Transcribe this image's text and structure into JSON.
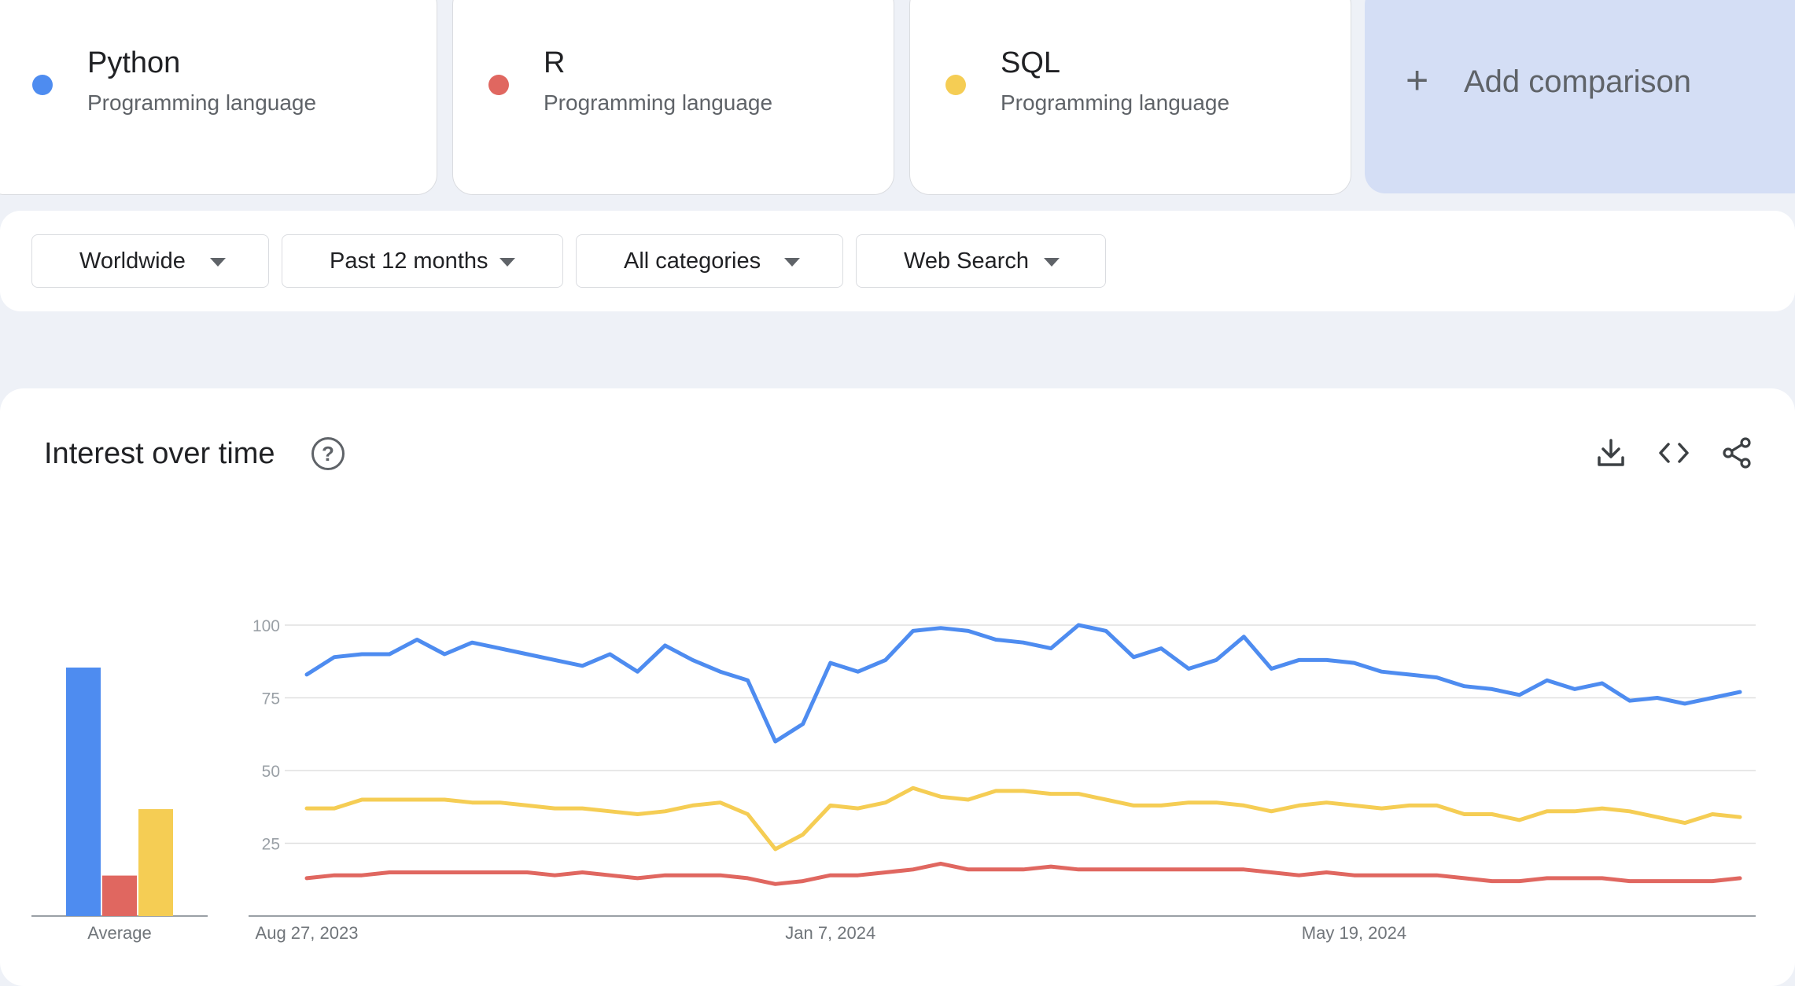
{
  "terms": [
    {
      "name": "Python",
      "type": "Programming language",
      "color": "#4e8cf0"
    },
    {
      "name": "R",
      "type": "Programming language",
      "color": "#e06760"
    },
    {
      "name": "SQL",
      "type": "Programming language",
      "color": "#f5cd54"
    }
  ],
  "add_comparison": {
    "icon": "plus-icon",
    "label": "Add comparison"
  },
  "filters": {
    "region": "Worldwide",
    "time": "Past 12 months",
    "category": "All categories",
    "search_type": "Web Search"
  },
  "panel": {
    "title": "Interest over time",
    "help_icon": "help-circle-icon",
    "actions": [
      "download-icon",
      "embed-code-icon",
      "share-icon"
    ]
  },
  "chart_data": [
    {
      "type": "bar",
      "categories": [
        "Python",
        "R",
        "SQL"
      ],
      "values": [
        86,
        14,
        37
      ],
      "xlabel": "Average",
      "colors": [
        "#4e8cf0",
        "#e06760",
        "#f5cd54"
      ]
    },
    {
      "type": "line",
      "ylim": [
        0,
        100
      ],
      "yticks": [
        25,
        50,
        75,
        100
      ],
      "grid": true,
      "x_labels": [
        {
          "index": 0,
          "label": "Aug 27, 2023"
        },
        {
          "index": 19,
          "label": "Jan 7, 2024"
        },
        {
          "index": 38,
          "label": "May 19, 2024"
        }
      ],
      "series": [
        {
          "name": "Python",
          "color": "#4e8cf0",
          "values": [
            83,
            89,
            90,
            90,
            95,
            90,
            94,
            92,
            90,
            88,
            86,
            90,
            84,
            93,
            88,
            84,
            81,
            60,
            66,
            87,
            84,
            88,
            98,
            99,
            98,
            95,
            94,
            92,
            100,
            98,
            89,
            92,
            85,
            88,
            96,
            85,
            88,
            88,
            87,
            84,
            83,
            82,
            79,
            78,
            76,
            81,
            78,
            80,
            74,
            75,
            73,
            75,
            77
          ]
        },
        {
          "name": "R",
          "color": "#e06760",
          "values": [
            13,
            14,
            14,
            15,
            15,
            15,
            15,
            15,
            15,
            14,
            15,
            14,
            13,
            14,
            14,
            14,
            13,
            11,
            12,
            14,
            14,
            15,
            16,
            18,
            16,
            16,
            16,
            17,
            16,
            16,
            16,
            16,
            16,
            16,
            16,
            15,
            14,
            15,
            14,
            14,
            14,
            14,
            13,
            12,
            12,
            13,
            13,
            13,
            12,
            12,
            12,
            12,
            13
          ]
        },
        {
          "name": "SQL",
          "color": "#f5cd54",
          "values": [
            37,
            37,
            40,
            40,
            40,
            40,
            39,
            39,
            38,
            37,
            37,
            36,
            35,
            36,
            38,
            39,
            35,
            23,
            28,
            38,
            37,
            39,
            44,
            41,
            40,
            43,
            43,
            42,
            42,
            40,
            38,
            38,
            39,
            39,
            38,
            36,
            38,
            39,
            38,
            37,
            38,
            38,
            35,
            35,
            33,
            36,
            36,
            37,
            36,
            34,
            32,
            35,
            34
          ]
        }
      ]
    }
  ]
}
